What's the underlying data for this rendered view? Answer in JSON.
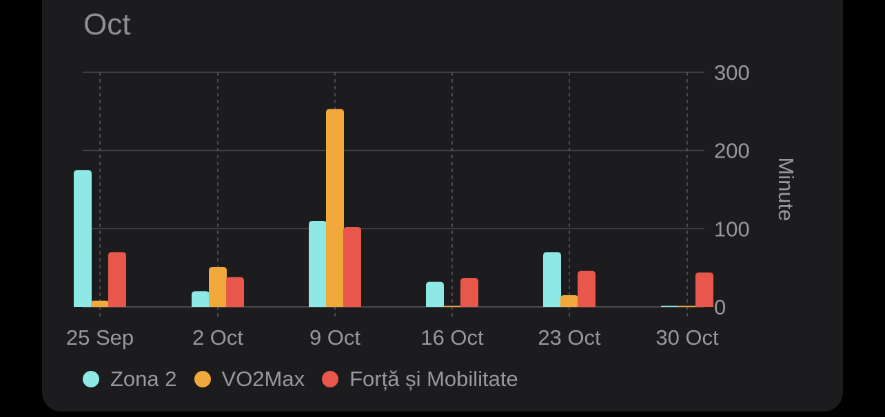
{
  "header": {
    "period_label": "Oct"
  },
  "chart_data": {
    "type": "bar",
    "categories": [
      "25 Sep",
      "2 Oct",
      "9 Oct",
      "16 Oct",
      "23 Oct",
      "30 Oct"
    ],
    "series": [
      {
        "name": "Zona 2",
        "color": "#8de8e6",
        "values": [
          175,
          20,
          110,
          32,
          70,
          1
        ]
      },
      {
        "name": "VO2Max",
        "color": "#f2a93b",
        "values": [
          8,
          51,
          253,
          1,
          15,
          1
        ]
      },
      {
        "name": "Forță și Mobilitate",
        "color": "#e9564b",
        "values": [
          70,
          38,
          102,
          37,
          46,
          44
        ]
      }
    ],
    "ylabel": "Minute",
    "yticks": [
      0,
      100,
      200,
      300
    ],
    "ylim": [
      0,
      300
    ],
    "axis_position": "right",
    "grid": true,
    "legend_position": "bottom-left"
  }
}
